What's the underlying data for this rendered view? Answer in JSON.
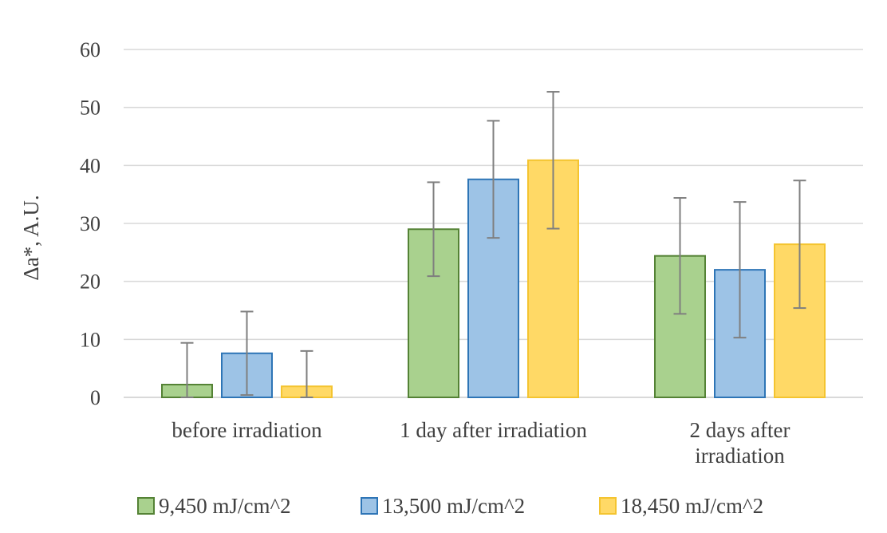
{
  "chart_data": {
    "type": "bar",
    "title": "",
    "xlabel": "",
    "ylabel": "Δa*, A.U.",
    "ylim": [
      0,
      60
    ],
    "yticks": [
      0,
      10,
      20,
      30,
      40,
      50,
      60
    ],
    "grid": true,
    "legend_position": "bottom",
    "categories": [
      [
        "before irradiation"
      ],
      [
        "1 day after irradiation"
      ],
      [
        "2 days after",
        "irradiation"
      ]
    ],
    "series": [
      {
        "name": "9,450 mJ/cm^2",
        "color": "#a9d18e",
        "stroke": "#548235",
        "values": [
          2.2,
          29.0,
          24.4
        ],
        "error": [
          7.2,
          8.1,
          10.0
        ]
      },
      {
        "name": "13,500 mJ/cm^2",
        "color": "#9dc3e6",
        "stroke": "#2e75b6",
        "values": [
          7.6,
          37.6,
          22.0
        ],
        "error": [
          7.2,
          10.1,
          11.7
        ]
      },
      {
        "name": "18,450 mJ/cm^2",
        "color": "#ffd966",
        "stroke": "#f4c430",
        "values": [
          1.9,
          40.9,
          26.4
        ],
        "error": [
          6.1,
          11.8,
          11.0
        ]
      }
    ],
    "colors": {
      "grid": "#d9d9d9",
      "text": "#404040",
      "error_bar": "#7f7f7f"
    }
  }
}
